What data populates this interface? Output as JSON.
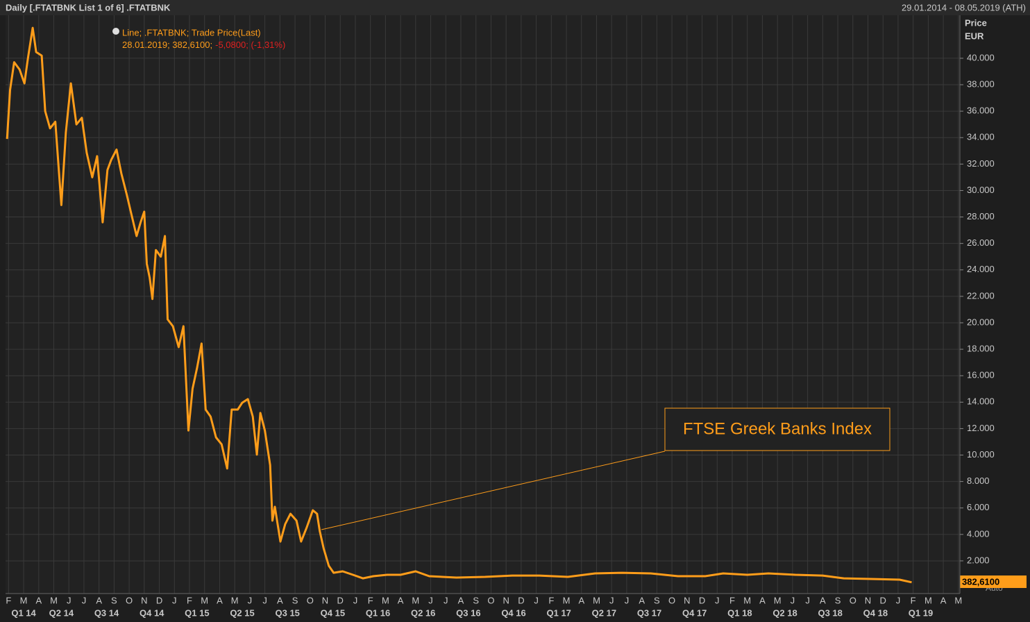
{
  "chart_data": {
    "type": "line",
    "title": "Daily [.FTATBNK List 1 of 6] .FTATBNK",
    "date_range": "29.01.2014 - 08.05.2019 (ATH)",
    "y_axis_label": "Price",
    "y_axis_unit": "EUR",
    "legend": {
      "line1": "Line; .FTATBNK; Trade Price(Last)",
      "line2": "28.01.2019; 382,6100;",
      "change": "-5,0800; (-1,31%)"
    },
    "annotation": "FTSE Greek Banks Index",
    "last_price_label": "382,6100",
    "auto_label": "Auto",
    "grid": true,
    "series": [
      {
        "color": "#ff9d1a",
        "x": [
          -0.1,
          0.1,
          0.37,
          0.73,
          1.05,
          1.28,
          1.6,
          1.83,
          2.2,
          2.43,
          2.75,
          3.1,
          3.5,
          3.8,
          4.13,
          4.5,
          4.86,
          5.18,
          5.55,
          5.87,
          6.24,
          6.56,
          6.8,
          7.16,
          7.48,
          7.84,
          8.17,
          8.49,
          8.76,
          9.0,
          9.17,
          9.36,
          9.54,
          9.77,
          10.1,
          10.37,
          10.55,
          10.9,
          11.28,
          11.6,
          11.93,
          12.2,
          12.5,
          12.8,
          13.07,
          13.4,
          13.76,
          14.13,
          14.5,
          14.8,
          15.2,
          15.5,
          15.87,
          16.2,
          16.47,
          16.7,
          17.0,
          17.35,
          17.5,
          17.66,
          18.03,
          18.35,
          18.7,
          19.1,
          19.4,
          19.77,
          20.18,
          20.46,
          20.64,
          20.9,
          21.24,
          21.56,
          22.16,
          22.84,
          23.5,
          24.2,
          25.1,
          26.0,
          27.0,
          27.9,
          29.7,
          31.6,
          33.4,
          35.2,
          37.1,
          38.9,
          40.7,
          42.6,
          44.4,
          46.2,
          47.4,
          49.0,
          50.4,
          52.2,
          54.0,
          55.4,
          57.2,
          59.1,
          59.9
        ],
        "values": [
          33900,
          37600,
          39700,
          39150,
          38100,
          39950,
          42300,
          40470,
          40200,
          36000,
          34700,
          35200,
          28900,
          34400,
          38100,
          35000,
          35500,
          32860,
          31000,
          32600,
          27600,
          31550,
          32300,
          33100,
          31300,
          29700,
          28100,
          26560,
          27600,
          28400,
          24460,
          23400,
          21800,
          25500,
          25000,
          26560,
          20260,
          19740,
          18160,
          19740,
          11860,
          15010,
          16590,
          18430,
          13440,
          12910,
          11340,
          10810,
          8980,
          13440,
          13440,
          13960,
          14230,
          12910,
          10030,
          13180,
          11860,
          9240,
          5040,
          6090,
          3460,
          4780,
          5560,
          5040,
          3460,
          4510,
          5830,
          5560,
          4250,
          2940,
          1630,
          1100,
          1210,
          945,
          680,
          840,
          945,
          945,
          1210,
          840,
          735,
          790,
          890,
          890,
          790,
          1050,
          1100,
          1050,
          840,
          840,
          1050,
          945,
          1050,
          945,
          890,
          680,
          630,
          580,
          382.61
        ]
      }
    ],
    "xlim": [
      -0.2,
      63.1
    ],
    "ylim": [
      -470,
      43250
    ],
    "yticks": [
      {
        "value": 2000,
        "label": "2.000"
      },
      {
        "value": 4000,
        "label": "4.000"
      },
      {
        "value": 6000,
        "label": "6.000"
      },
      {
        "value": 8000,
        "label": "8.000"
      },
      {
        "value": 10000,
        "label": "10.000"
      },
      {
        "value": 12000,
        "label": "12.000"
      },
      {
        "value": 14000,
        "label": "14.000"
      },
      {
        "value": 16000,
        "label": "16.000"
      },
      {
        "value": 18000,
        "label": "18.000"
      },
      {
        "value": 20000,
        "label": "20.000"
      },
      {
        "value": 22000,
        "label": "22.000"
      },
      {
        "value": 24000,
        "label": "24.000"
      },
      {
        "value": 26000,
        "label": "26.000"
      },
      {
        "value": 28000,
        "label": "28.000"
      },
      {
        "value": 30000,
        "label": "30.000"
      },
      {
        "value": 32000,
        "label": "32.000"
      },
      {
        "value": 34000,
        "label": "34.000"
      },
      {
        "value": 36000,
        "label": "36.000"
      },
      {
        "value": 38000,
        "label": "38.000"
      },
      {
        "value": 40000,
        "label": "40.000"
      }
    ],
    "xticks": [
      {
        "value": 0,
        "label": "F"
      },
      {
        "value": 1,
        "label": "M"
      },
      {
        "value": 2,
        "label": "A"
      },
      {
        "value": 3,
        "label": "M"
      },
      {
        "value": 4,
        "label": "J"
      },
      {
        "value": 5,
        "label": "J"
      },
      {
        "value": 6,
        "label": "A"
      },
      {
        "value": 7,
        "label": "S"
      },
      {
        "value": 8,
        "label": "O"
      },
      {
        "value": 9,
        "label": "N"
      },
      {
        "value": 10,
        "label": "D"
      },
      {
        "value": 11,
        "label": "J"
      },
      {
        "value": 12,
        "label": "F"
      },
      {
        "value": 13,
        "label": "M"
      },
      {
        "value": 14,
        "label": "A"
      },
      {
        "value": 15,
        "label": "M"
      },
      {
        "value": 16,
        "label": "J"
      },
      {
        "value": 17,
        "label": "J"
      },
      {
        "value": 18,
        "label": "A"
      },
      {
        "value": 19,
        "label": "S"
      },
      {
        "value": 20,
        "label": "O"
      },
      {
        "value": 21,
        "label": "N"
      },
      {
        "value": 22,
        "label": "D"
      },
      {
        "value": 23,
        "label": "J"
      },
      {
        "value": 24,
        "label": "F"
      },
      {
        "value": 25,
        "label": "M"
      },
      {
        "value": 26,
        "label": "A"
      },
      {
        "value": 27,
        "label": "M"
      },
      {
        "value": 28,
        "label": "J"
      },
      {
        "value": 29,
        "label": "J"
      },
      {
        "value": 30,
        "label": "A"
      },
      {
        "value": 31,
        "label": "S"
      },
      {
        "value": 32,
        "label": "O"
      },
      {
        "value": 33,
        "label": "N"
      },
      {
        "value": 34,
        "label": "D"
      },
      {
        "value": 35,
        "label": "J"
      },
      {
        "value": 36,
        "label": "F"
      },
      {
        "value": 37,
        "label": "M"
      },
      {
        "value": 38,
        "label": "A"
      },
      {
        "value": 39,
        "label": "M"
      },
      {
        "value": 40,
        "label": "J"
      },
      {
        "value": 41,
        "label": "J"
      },
      {
        "value": 42,
        "label": "A"
      },
      {
        "value": 43,
        "label": "S"
      },
      {
        "value": 44,
        "label": "O"
      },
      {
        "value": 45,
        "label": "N"
      },
      {
        "value": 46,
        "label": "D"
      },
      {
        "value": 47,
        "label": "J"
      },
      {
        "value": 48,
        "label": "F"
      },
      {
        "value": 49,
        "label": "M"
      },
      {
        "value": 50,
        "label": "A"
      },
      {
        "value": 51,
        "label": "M"
      },
      {
        "value": 52,
        "label": "J"
      },
      {
        "value": 53,
        "label": "J"
      },
      {
        "value": 54,
        "label": "A"
      },
      {
        "value": 55,
        "label": "S"
      },
      {
        "value": 56,
        "label": "O"
      },
      {
        "value": 57,
        "label": "N"
      },
      {
        "value": 58,
        "label": "D"
      },
      {
        "value": 59,
        "label": "J"
      },
      {
        "value": 60,
        "label": "F"
      },
      {
        "value": 61,
        "label": "M"
      },
      {
        "value": 62,
        "label": "A"
      },
      {
        "value": 63,
        "label": "M"
      }
    ],
    "quarter_ticks": [
      {
        "value": 1,
        "label": "Q1 14"
      },
      {
        "value": 3.5,
        "label": "Q2 14"
      },
      {
        "value": 6.5,
        "label": "Q3 14"
      },
      {
        "value": 9.5,
        "label": "Q4 14"
      },
      {
        "value": 12.5,
        "label": "Q1 15"
      },
      {
        "value": 15.5,
        "label": "Q2 15"
      },
      {
        "value": 18.5,
        "label": "Q3 15"
      },
      {
        "value": 21.5,
        "label": "Q4 15"
      },
      {
        "value": 24.5,
        "label": "Q1 16"
      },
      {
        "value": 27.5,
        "label": "Q2 16"
      },
      {
        "value": 30.5,
        "label": "Q3 16"
      },
      {
        "value": 33.5,
        "label": "Q4 16"
      },
      {
        "value": 36.5,
        "label": "Q1 17"
      },
      {
        "value": 39.5,
        "label": "Q2 17"
      },
      {
        "value": 42.5,
        "label": "Q3 17"
      },
      {
        "value": 45.5,
        "label": "Q4 17"
      },
      {
        "value": 48.5,
        "label": "Q1 18"
      },
      {
        "value": 51.5,
        "label": "Q2 18"
      },
      {
        "value": 54.5,
        "label": "Q3 18"
      },
      {
        "value": 57.5,
        "label": "Q4 18"
      },
      {
        "value": 60.5,
        "label": "Q1 19"
      }
    ]
  }
}
